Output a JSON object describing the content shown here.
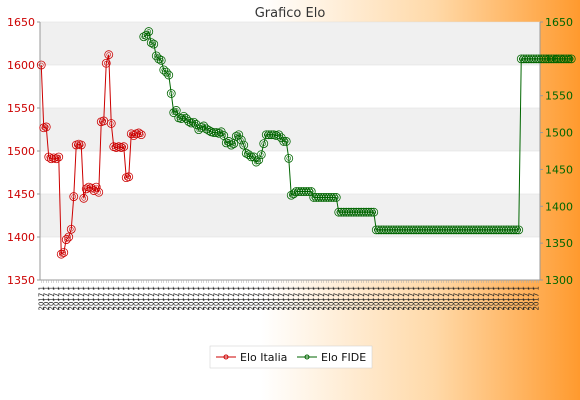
{
  "chart_data": {
    "type": "line",
    "title": "Grafico Elo",
    "y_left": {
      "min": 1350,
      "max": 1650,
      "ticks": [
        1350,
        1400,
        1450,
        1500,
        1550,
        1600,
        1650
      ],
      "color": "#cc0000"
    },
    "y_right": {
      "min": 1300,
      "max": 1650,
      "ticks": [
        1300,
        1350,
        1400,
        1450,
        1500,
        1550,
        1600,
        1650
      ],
      "color": "#006600"
    },
    "x_count": 200,
    "x_tick_label": "2017 1",
    "series": [
      {
        "name": "Elo Italia",
        "axis": "left",
        "color": "#cc0000",
        "start_index": 0,
        "values": [
          1600,
          1527,
          1528,
          1493,
          1491,
          1492,
          1491,
          1493,
          1380,
          1382,
          1397,
          1400,
          1409,
          1447,
          1507,
          1508,
          1507,
          1445,
          1456,
          1458,
          1457,
          1454,
          1458,
          1452,
          1534,
          1535,
          1602,
          1612,
          1532,
          1505,
          1504,
          1505,
          1504,
          1505,
          1469,
          1470,
          1520,
          1518,
          1520,
          1521,
          1519
        ]
      },
      {
        "name": "Elo FIDE",
        "axis": "right",
        "color": "#006600",
        "start_index": 41,
        "values": [
          1630,
          1632,
          1637,
          1622,
          1620,
          1604,
          1600,
          1598,
          1585,
          1582,
          1578,
          1553,
          1527,
          1530,
          1520,
          1519,
          1522,
          1519,
          1515,
          1513,
          1514,
          1511,
          1504,
          1507,
          1509,
          1505,
          1503,
          1501,
          1500,
          1500,
          1499,
          1501,
          1496,
          1486,
          1488,
          1483,
          1485,
          1495,
          1497,
          1490,
          1483,
          1472,
          1470,
          1467,
          1467,
          1460,
          1463,
          1470,
          1485,
          1497,
          1497,
          1497,
          1497,
          1496,
          1497,
          1493,
          1488,
          1488,
          1465,
          1415,
          1417,
          1420,
          1420,
          1420,
          1420,
          1420,
          1420,
          1420,
          1412,
          1412,
          1412,
          1412,
          1412,
          1412,
          1412,
          1412,
          1412,
          1412,
          1392,
          1392,
          1392,
          1392,
          1392,
          1392,
          1392,
          1392,
          1392,
          1392,
          1392,
          1392,
          1392,
          1392,
          1392,
          1368,
          1368,
          1368,
          1368,
          1368,
          1368,
          1368,
          1368,
          1368,
          1368,
          1368,
          1368,
          1368,
          1368,
          1368,
          1368,
          1368,
          1368,
          1368,
          1368,
          1368,
          1368,
          1368,
          1368,
          1368,
          1368,
          1368,
          1368,
          1368,
          1368,
          1368,
          1368,
          1368,
          1368,
          1368,
          1368,
          1368,
          1368,
          1368,
          1368,
          1368,
          1368,
          1368,
          1368,
          1368,
          1368,
          1368,
          1368,
          1368,
          1368,
          1368,
          1368,
          1368,
          1368,
          1368,
          1368,
          1368,
          1368,
          1600,
          1600,
          1600,
          1600,
          1600,
          1600,
          1600,
          1600,
          1600,
          1600,
          1600,
          1600,
          1600,
          1600,
          1600,
          1600,
          1600,
          1600,
          1600,
          1600,
          1600
        ]
      }
    ],
    "legend": {
      "placement": "bottom",
      "items": [
        "Elo Italia",
        "Elo FIDE"
      ]
    },
    "grid": true
  }
}
